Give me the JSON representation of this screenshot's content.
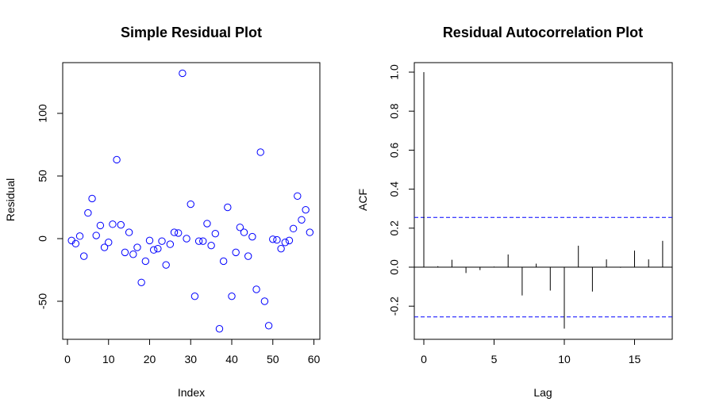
{
  "chart_data": [
    {
      "type": "scatter",
      "title": "Simple Residual Plot",
      "xlabel": "Index",
      "ylabel": "Residual",
      "xlim": [
        0,
        60
      ],
      "ylim": [
        -75,
        135
      ],
      "xticks": [
        0,
        10,
        20,
        30,
        40,
        50,
        60
      ],
      "yticks": [
        -50,
        0,
        50,
        100
      ],
      "point_color": "#0000ff",
      "x": [
        1,
        2,
        3,
        4,
        5,
        6,
        7,
        8,
        9,
        10,
        11,
        12,
        13,
        14,
        15,
        16,
        17,
        18,
        19,
        20,
        21,
        22,
        23,
        24,
        25,
        26,
        27,
        28,
        29,
        30,
        31,
        32,
        33,
        34,
        35,
        36,
        37,
        38,
        39,
        40,
        41,
        42,
        43,
        44,
        45,
        46,
        47,
        48,
        49,
        50,
        51,
        52,
        53,
        54,
        55,
        56,
        57,
        58,
        59
      ],
      "y": [
        -1.5,
        -4,
        2,
        -14,
        20.5,
        32,
        2.5,
        10.5,
        -7,
        -3,
        11.5,
        63,
        11,
        -11,
        5,
        -12.5,
        -7,
        -35,
        -18,
        -1.5,
        -9,
        -8,
        -2,
        -21,
        -4.5,
        5,
        4.5,
        132,
        0,
        27.5,
        -46,
        -2,
        -2,
        12,
        -5.5,
        4,
        -72,
        -18,
        25,
        -46,
        -11,
        9,
        5,
        -14,
        1.5,
        -40.5,
        69,
        -50,
        -69.5,
        -0.5,
        -1,
        -8,
        -3,
        -1.5,
        8,
        34,
        15,
        23,
        5
      ]
    },
    {
      "type": "bar",
      "title": "Residual Autocorrelation Plot",
      "xlabel": "Lag",
      "ylabel": "ACF",
      "xlim": [
        0,
        17
      ],
      "ylim": [
        -0.33,
        1.0
      ],
      "xticks": [
        0,
        5,
        10,
        15
      ],
      "yticks": [
        -0.2,
        0.0,
        0.2,
        0.4,
        0.6,
        0.8,
        1.0
      ],
      "ci_color": "#0000ff",
      "ci": [
        0.255,
        -0.255
      ],
      "lags": [
        0,
        1,
        2,
        3,
        4,
        5,
        6,
        7,
        8,
        9,
        10,
        11,
        12,
        13,
        14,
        15,
        16,
        17
      ],
      "values": [
        1.0,
        0.005,
        0.038,
        -0.03,
        -0.015,
        0.003,
        0.065,
        -0.145,
        0.018,
        -0.12,
        -0.315,
        0.11,
        -0.125,
        0.04,
        -0.003,
        0.085,
        0.04,
        0.135
      ]
    }
  ]
}
